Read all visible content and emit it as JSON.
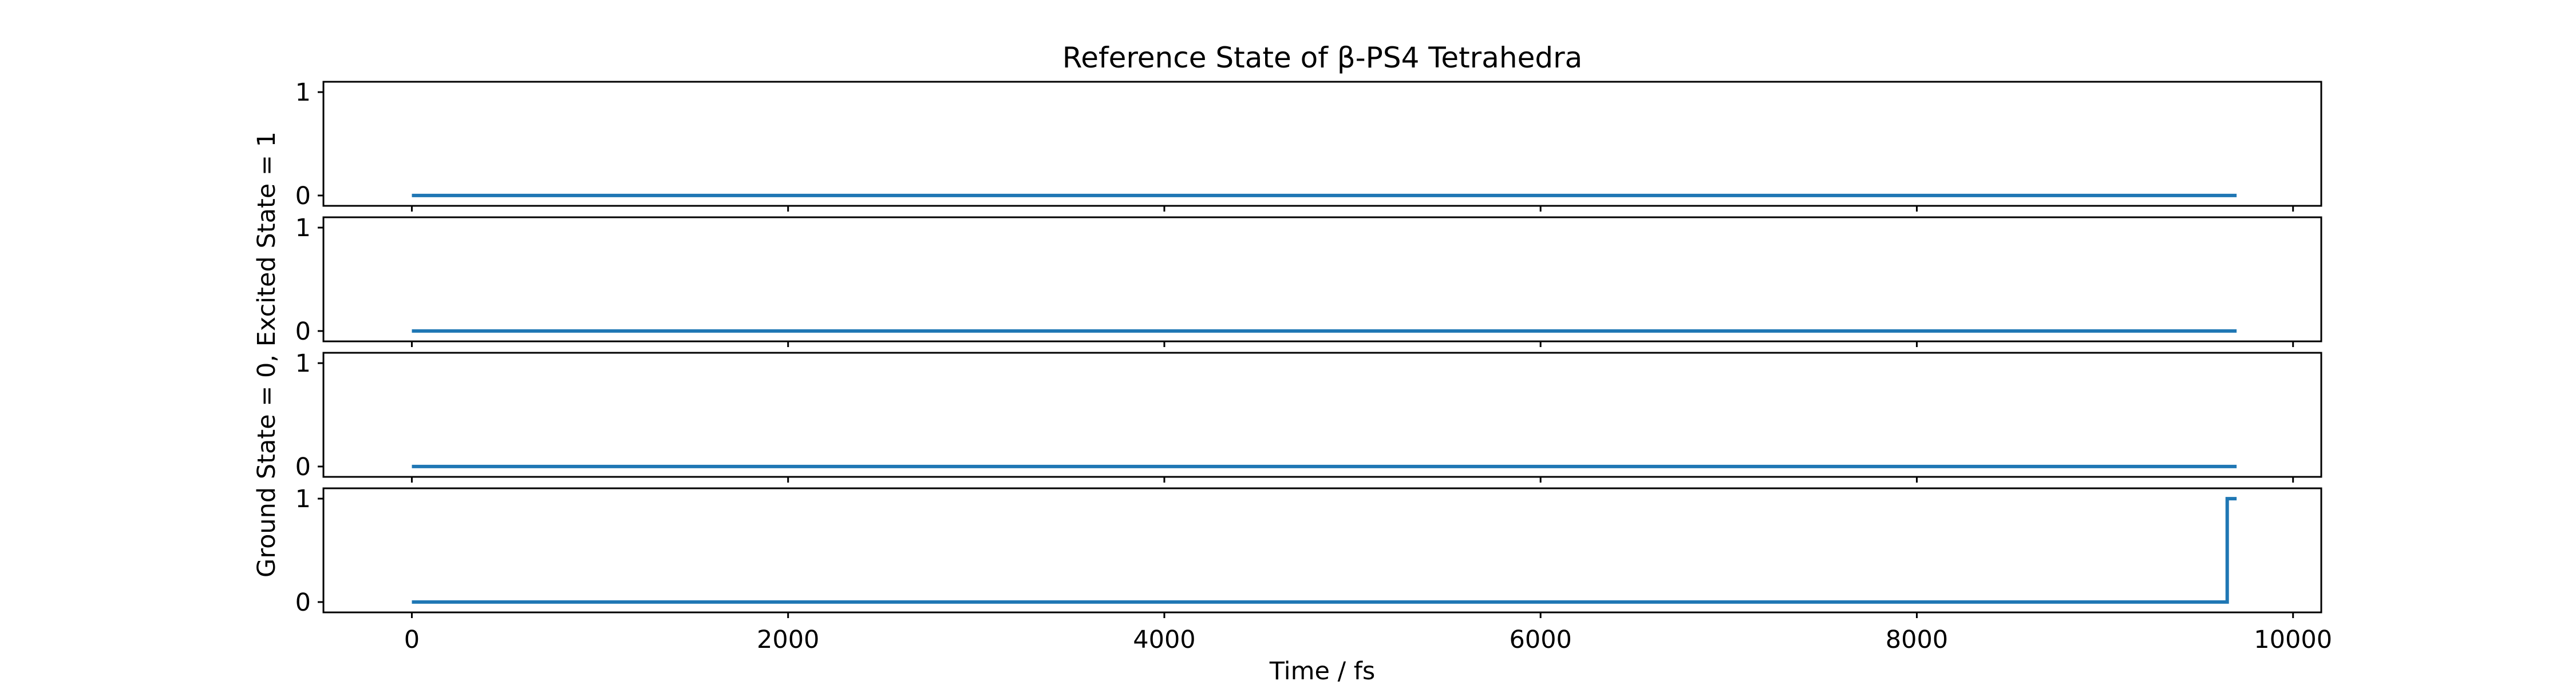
{
  "chart_data": {
    "type": "line",
    "title": "Reference State of β-PS4 Tetrahedra",
    "xlabel": "Time / fs",
    "ylabel": "Ground State = 0, Excited State = 1",
    "xlim": [
      -470,
      10150
    ],
    "ylim": [
      -0.1,
      1.1
    ],
    "xticks": [
      0,
      2000,
      4000,
      6000,
      8000,
      10000
    ],
    "yticks": [
      0,
      1
    ],
    "line_color": "#1f77b4",
    "shared_x": true,
    "grid": false,
    "legend": "none",
    "panels": [
      {
        "series": [
          {
            "x": [
              0,
              9700
            ],
            "y": [
              0,
              0
            ]
          }
        ]
      },
      {
        "series": [
          {
            "x": [
              0,
              9700
            ],
            "y": [
              0,
              0
            ]
          }
        ]
      },
      {
        "series": [
          {
            "x": [
              0,
              9700
            ],
            "y": [
              0,
              0
            ]
          }
        ]
      },
      {
        "series": [
          {
            "x": [
              0,
              9650,
              9650,
              9700
            ],
            "y": [
              0,
              0,
              1,
              1
            ]
          }
        ]
      }
    ]
  }
}
